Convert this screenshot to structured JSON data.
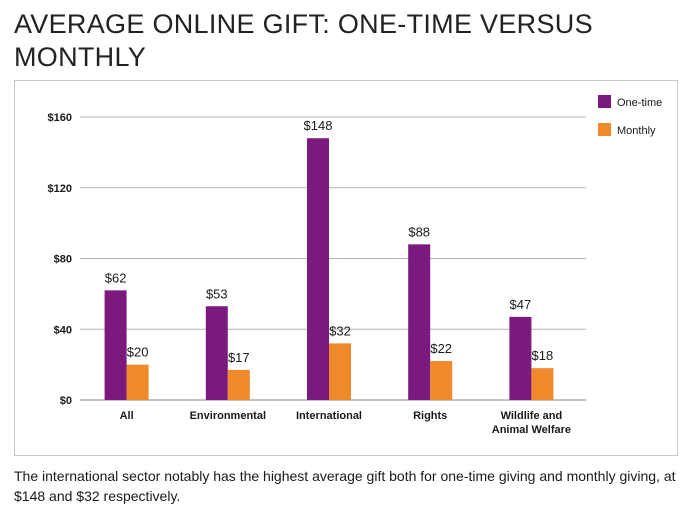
{
  "title": "AVERAGE ONLINE GIFT: ONE-TIME VERSUS MONTHLY",
  "caption": "The international sector notably has the highest average gift both for one-time giving and monthly giving, at $148 and $32 respectively.",
  "chart_data": {
    "type": "bar",
    "categories": [
      [
        "All"
      ],
      [
        "Environmental"
      ],
      [
        "International"
      ],
      [
        "Rights"
      ],
      [
        "Wildlife and",
        "Animal Welfare"
      ]
    ],
    "series": [
      {
        "name": "One-time",
        "color": "#7b1a7e",
        "values": [
          62,
          53,
          148,
          88,
          47
        ],
        "labels": [
          "$62",
          "$53",
          "$148",
          "$88",
          "$47"
        ]
      },
      {
        "name": "Monthly",
        "color": "#f0892a",
        "values": [
          20,
          17,
          32,
          22,
          18
        ],
        "labels": [
          "$20",
          "$17",
          "$32",
          "$22",
          "$18"
        ]
      }
    ],
    "ylim": [
      0,
      160
    ],
    "yticks": [
      0,
      40,
      80,
      120,
      160
    ],
    "ytick_labels": [
      "$0",
      "$40",
      "$80",
      "$120",
      "$160"
    ],
    "grid": true,
    "legend_position": "top-right"
  }
}
